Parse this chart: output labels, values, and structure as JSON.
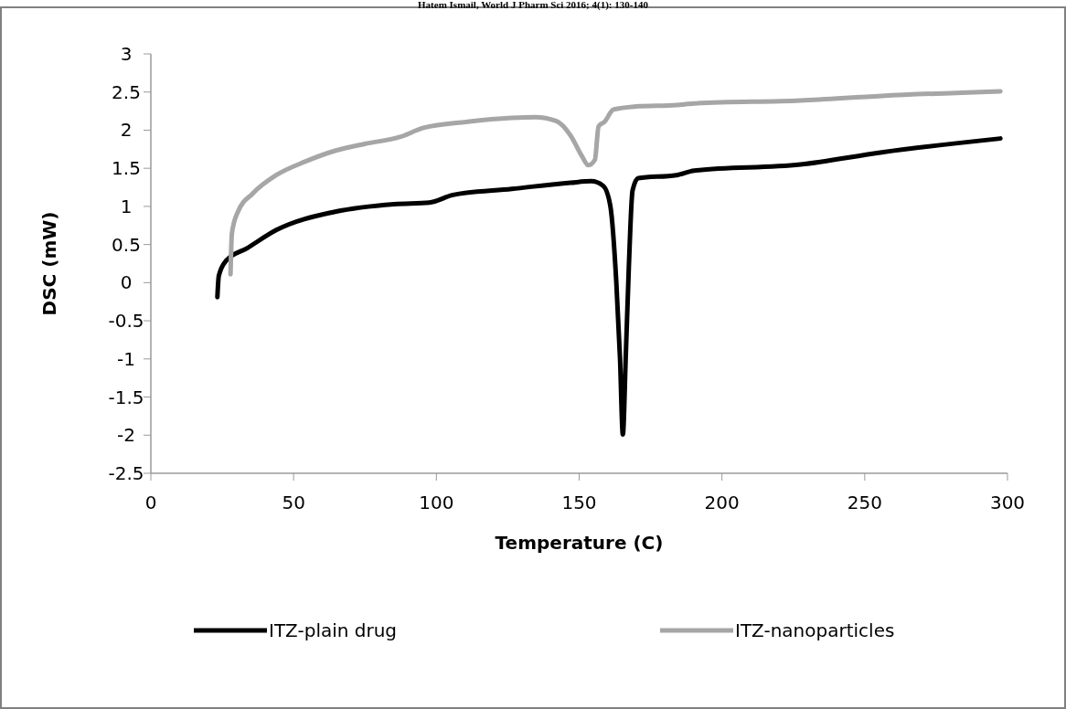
{
  "chart_data": {
    "type": "line",
    "xlabel": "Temperature (C)",
    "ylabel": "DSC (mW)",
    "annotations": [
      "Hatem Ismail, World J Pharm Sci 2016; 4(1): 130-140"
    ],
    "xlim": [
      0,
      300
    ],
    "xticks": [
      0,
      50,
      100,
      150,
      200,
      250,
      300
    ],
    "ylim": [
      -2.5,
      3
    ],
    "yticks": [
      -2.5,
      -2,
      -1.5,
      -1,
      -0.5,
      0,
      0.5,
      1,
      1.5,
      2,
      2.5,
      3
    ],
    "grid": false,
    "legend": "bottom",
    "marker": "none",
    "line_style": "solid",
    "series": [
      {
        "name": "ITZ-plain drug",
        "color": "#000000",
        "x": [
          23.3,
          23.8,
          26.4,
          33.6,
          43.9,
          64.5,
          85.2,
          97.5,
          105.8,
          126.4,
          147,
          154.2,
          158.4,
          160.9,
          163,
          164.3,
          165.3,
          166.3,
          167.4,
          168.7,
          170.7,
          184,
          190.3,
          227.5,
          256,
          297.5
        ],
        "values": [
          -0.19,
          0.09,
          0.29,
          0.45,
          0.69,
          0.93,
          1.03,
          1.05,
          1.15,
          1.23,
          1.31,
          1.33,
          1.27,
          1.01,
          0.01,
          -0.99,
          -1.99,
          -0.99,
          0.21,
          1.21,
          1.37,
          1.41,
          1.47,
          1.55,
          1.71,
          1.89
        ]
      },
      {
        "name": "ITZ-nanoparticles",
        "color": "#a6a6a6",
        "x": [
          27.9,
          28.4,
          30.5,
          35.7,
          43.9,
          54.2,
          64.5,
          74.9,
          87.2,
          95.5,
          110.9,
          126.4,
          134.6,
          141.9,
          147,
          151.1,
          153.2,
          155.5,
          156.8,
          158.9,
          162,
          169.7,
          184,
          190.3,
          227.5,
          256,
          297.5
        ],
        "values": [
          0.11,
          0.65,
          0.93,
          1.17,
          1.41,
          1.59,
          1.73,
          1.82,
          1.91,
          2.03,
          2.11,
          2.16,
          2.17,
          2.12,
          1.93,
          1.65,
          1.54,
          1.61,
          2.05,
          2.11,
          2.27,
          2.31,
          2.33,
          2.35,
          2.39,
          2.45,
          2.51
        ]
      }
    ]
  }
}
